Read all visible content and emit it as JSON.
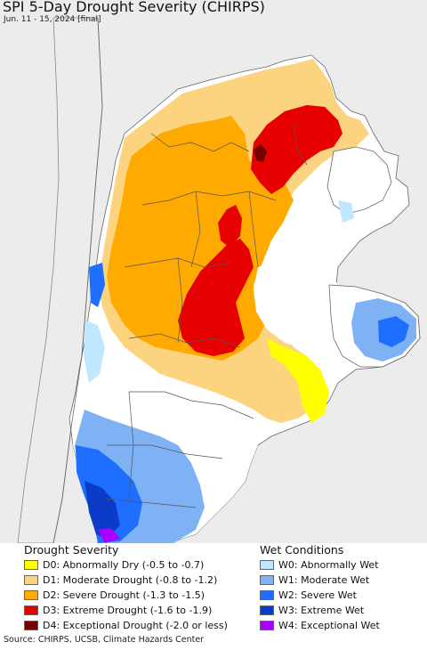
{
  "map": {
    "title": "SPI 5-Day Drought Severity (CHIRPS)",
    "subtitle": "Jun. 11 - 15, 2024 [final]",
    "source": "Source: CHIRPS, UCSB, Climate Hazards Center",
    "colors": {
      "sea": "#ececec",
      "land": "#ffffff",
      "border": "#666666"
    }
  },
  "legend": {
    "drought_title": "Drought Severity",
    "wet_title": "Wet Conditions",
    "drought": [
      {
        "label": "D0: Abnormally Dry (-0.5 to -0.7)",
        "color": "#ffff00"
      },
      {
        "label": "D1: Moderate Drought (-0.8 to -1.2)",
        "color": "#fcd37f"
      },
      {
        "label": "D2: Severe Drought (-1.3 to -1.5)",
        "color": "#ffaa00"
      },
      {
        "label": "D3: Extreme Drought (-1.6 to -1.9)",
        "color": "#e60000"
      },
      {
        "label": "D4: Exceptional Drought (-2.0 or less)",
        "color": "#730000"
      }
    ],
    "wet": [
      {
        "label": "W0: Abnormally Wet",
        "color": "#bfe8ff"
      },
      {
        "label": "W1: Moderate Wet",
        "color": "#7fb2f5"
      },
      {
        "label": "W2: Severe Wet",
        "color": "#1e6eff"
      },
      {
        "label": "W3: Extreme Wet",
        "color": "#0a3cc8"
      },
      {
        "label": "W4: Exceptional Wet",
        "color": "#aa00ff"
      }
    ]
  }
}
